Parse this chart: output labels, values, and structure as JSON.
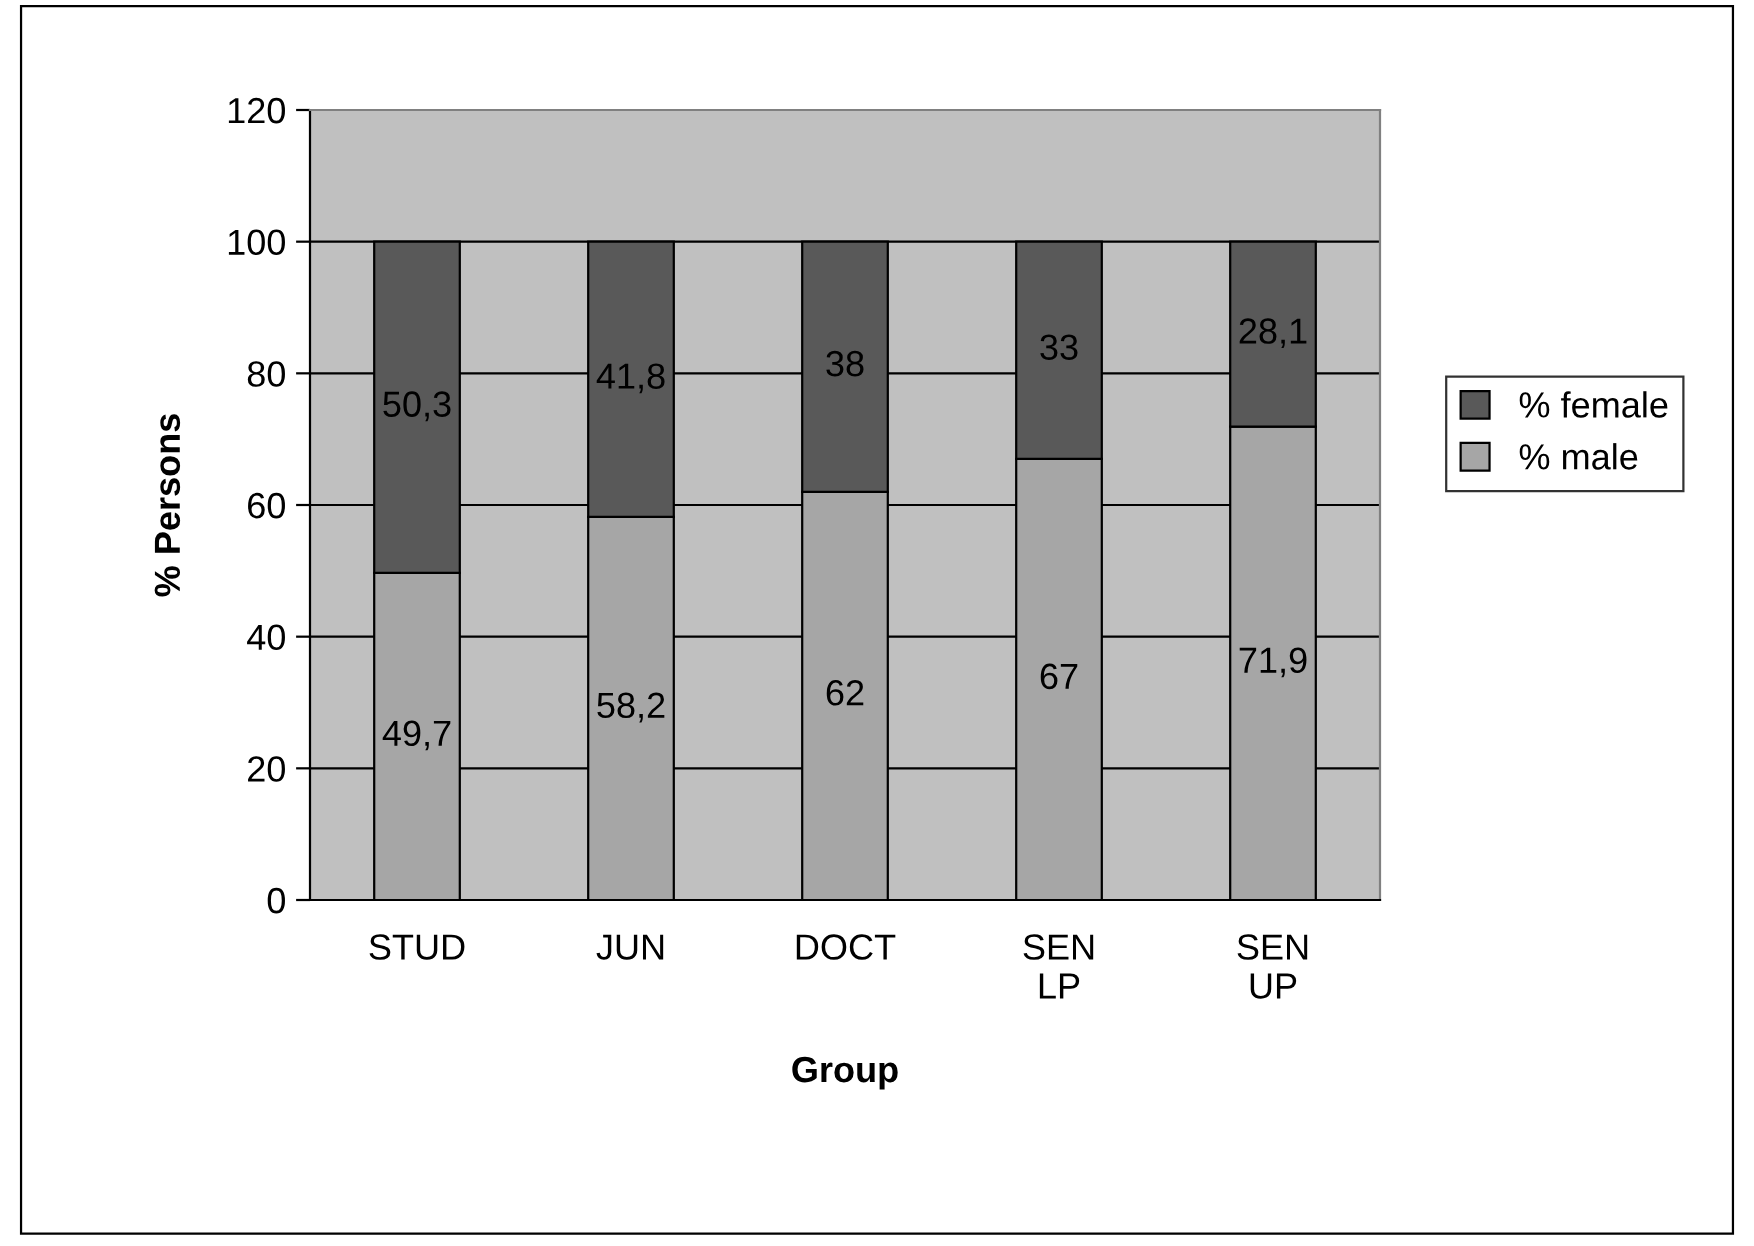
{
  "chart_data": {
    "type": "bar",
    "stacked": true,
    "xlabel": "Group",
    "ylabel": "% Persons",
    "categories": [
      "STUD",
      "JUN",
      "DOCT",
      "SEN\nLP",
      "SEN\nUP"
    ],
    "series": [
      {
        "name": "% male",
        "color": "#a6a6a6",
        "values": [
          49.7,
          58.2,
          62,
          67,
          71.9
        ],
        "value_labels": [
          "49,7",
          "58,2",
          "62",
          "67",
          "71,9"
        ]
      },
      {
        "name": "% female",
        "color": "#595959",
        "values": [
          50.3,
          41.8,
          38,
          33,
          28.1
        ],
        "value_labels": [
          "50,3",
          "41,8",
          "38",
          "33",
          "28,1"
        ]
      }
    ],
    "ylim": [
      0,
      120
    ],
    "yticks": [
      0,
      20,
      40,
      60,
      80,
      100,
      120
    ],
    "grid": "y",
    "legend": "right"
  }
}
